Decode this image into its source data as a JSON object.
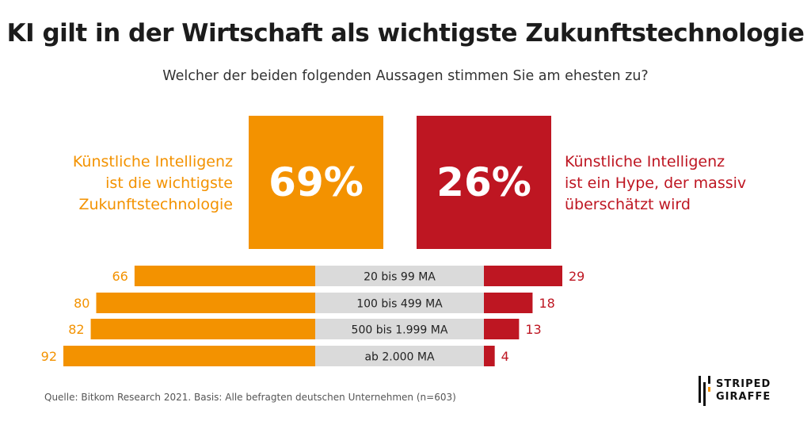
{
  "title": "KI gilt in der Wirtschaft als wichtigste Zukunftstechnologie",
  "subtitle": "Welcher der beiden folgenden Aussagen stimmen Sie am ehesten zu?",
  "left_statement": {
    "lines": [
      "Künstliche Intelligenz",
      "ist die wichtigste",
      "Zukunftstechnologie"
    ],
    "percent": "69%",
    "color": "#f39200"
  },
  "right_statement": {
    "lines": [
      "Künstliche Intelligenz",
      "ist ein Hype, der massiv",
      "überschätzt wird"
    ],
    "percent": "26%",
    "color": "#be1622"
  },
  "chart_data": {
    "type": "bar",
    "categories": [
      "20 bis 99 MA",
      "100 bis 499 MA",
      "500 bis 1.999 MA",
      "ab 2.000 MA"
    ],
    "series": [
      {
        "values": [
          66,
          80,
          82,
          92
        ]
      },
      {
        "values": [
          29,
          18,
          13,
          4
        ]
      }
    ],
    "value_labels_left": [
      "66",
      "80",
      "82",
      "92"
    ],
    "value_labels_right": [
      "29",
      "18",
      "13",
      "4"
    ],
    "totals": {
      "left": 69,
      "right": 26
    },
    "colors": {
      "left": "#f39200",
      "right": "#be1622",
      "category_band": "#dadada"
    }
  },
  "source": "Quelle: Bitkom Research 2021. Basis: Alle befragten deutschen Unternehmen (n=603)",
  "logo": {
    "line1": "STRIPED",
    "line2": "GIRAFFE"
  }
}
